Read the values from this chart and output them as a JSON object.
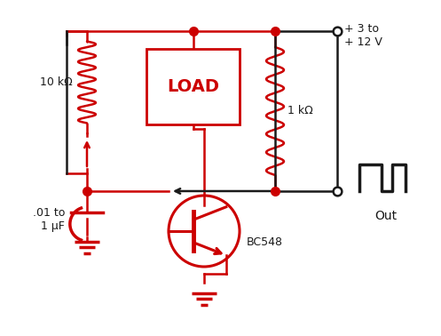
{
  "bg_color": "#ffffff",
  "red": "#cc0000",
  "black": "#1a1a1a",
  "labels": {
    "r1": "10 kΩ",
    "r2": "1 kΩ",
    "load": "LOAD",
    "transistor": "BC548",
    "cap": ".01 to\n1 μF",
    "supply": "+ 3 to\n+ 12 V",
    "out": "Out"
  },
  "figsize": [
    4.97,
    3.78
  ],
  "dpi": 100
}
